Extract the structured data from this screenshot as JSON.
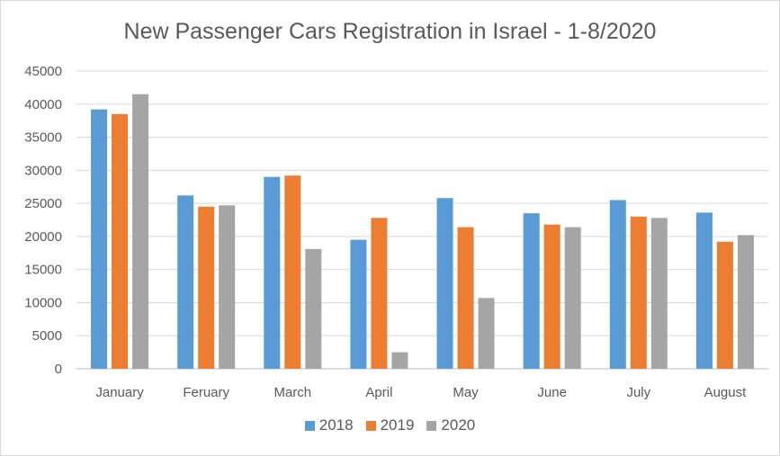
{
  "chart_data": {
    "type": "bar",
    "title": "New Passenger Cars Registration in Israel - 1-8/2020",
    "categories": [
      "January",
      "Feruary",
      "March",
      "April",
      "May",
      "June",
      "July",
      "August"
    ],
    "series": [
      {
        "name": "2018",
        "color": "#5b9bd5",
        "values": [
          39200,
          26200,
          29000,
          19500,
          25800,
          23500,
          25500,
          23600
        ]
      },
      {
        "name": "2019",
        "color": "#ed7d31",
        "values": [
          38500,
          24500,
          29200,
          22800,
          21400,
          21800,
          23000,
          19200
        ]
      },
      {
        "name": "2020",
        "color": "#a5a5a5",
        "values": [
          41500,
          24700,
          18100,
          2500,
          10700,
          21400,
          22800,
          20200
        ]
      }
    ],
    "ylim": [
      0,
      45000
    ],
    "yticks": [
      "0",
      "5000",
      "10000",
      "15000",
      "20000",
      "25000",
      "30000",
      "35000",
      "40000",
      "45000"
    ],
    "grid": true,
    "legend_position": "bottom"
  }
}
